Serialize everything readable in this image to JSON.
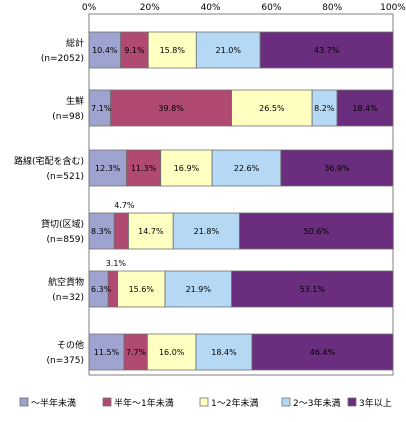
{
  "colors": [
    "#9fa3cf",
    "#b04a72",
    "#ffffc2",
    "#b5d9f4",
    "#6b2d7e"
  ],
  "chart_data": {
    "type": "bar",
    "orientation": "horizontal",
    "stacked": true,
    "xlim": [
      0,
      100
    ],
    "x_ticks": [
      "0%",
      "20%",
      "40%",
      "60%",
      "80%",
      "100%"
    ],
    "categories": [
      [
        "総計",
        "(n=2052)"
      ],
      [
        "生鮮",
        "(n=98)"
      ],
      [
        "路線(宅配を含む)",
        "(n=521)"
      ],
      [
        "貸切(区域)",
        "(n=859)"
      ],
      [
        "航空貨物",
        "(n=32)"
      ],
      [
        "その他",
        "(n=375)"
      ]
    ],
    "series": [
      {
        "name": "～半年未満",
        "values": [
          10.4,
          7.1,
          12.3,
          8.3,
          6.3,
          11.5
        ],
        "labels": [
          "10.4%",
          "7.1%",
          "12.3%",
          "8.3%",
          "6.3%",
          "11.5%"
        ]
      },
      {
        "name": "半年～1年未満",
        "values": [
          9.1,
          39.8,
          11.3,
          4.7,
          3.1,
          7.7
        ],
        "labels": [
          "9.1%",
          "39.8%",
          "11.3%",
          "4.7%",
          "3.1%",
          "7.7%"
        ]
      },
      {
        "name": "1～2年未満",
        "values": [
          15.8,
          26.5,
          16.9,
          14.7,
          15.6,
          16.0
        ],
        "labels": [
          "15.8%",
          "26.5%",
          "16.9%",
          "14.7%",
          "15.6%",
          "16.0%"
        ]
      },
      {
        "name": "2～3年未満",
        "values": [
          21.0,
          8.2,
          22.6,
          21.8,
          21.9,
          18.4
        ],
        "labels": [
          "21.0%",
          "8.2%",
          "22.6%",
          "21.8%",
          "21.9%",
          "18.4%"
        ]
      },
      {
        "name": "3年以上",
        "values": [
          43.7,
          18.4,
          36.9,
          50.6,
          53.1,
          46.4
        ],
        "labels": [
          "43.7%",
          "18.4%",
          "36.9%",
          "50.6%",
          "53.1%",
          "46.4%"
        ]
      }
    ],
    "legend_position": "bottom",
    "grid": false
  }
}
